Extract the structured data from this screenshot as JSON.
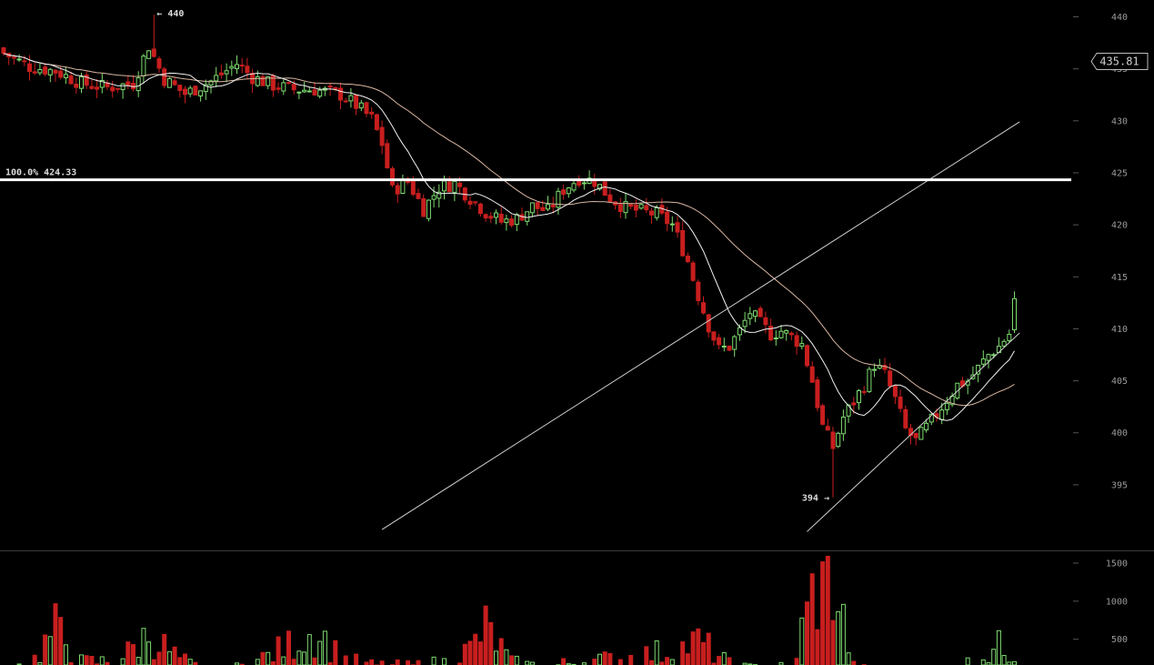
{
  "chart_data": {
    "type": "candlestick",
    "colors": {
      "background": "#000000",
      "up": "#7ddc6e",
      "down": "#c81e1e",
      "fast_ma": "#f2f2f2",
      "slow_ma": "#d9b6a0",
      "trendline": "#cfcfcf",
      "level_line": "#ffffff",
      "tick_text": "#9a9a9a"
    },
    "price_axis": {
      "ticks": [
        395,
        400,
        405,
        410,
        415,
        420,
        425,
        430,
        435,
        440
      ],
      "range": [
        391.0,
        441.0
      ],
      "last_price_label": "435.81"
    },
    "volume_axis": {
      "ticks": [
        500,
        1000,
        1500
      ],
      "range": [
        0,
        1620
      ]
    },
    "level_line": {
      "value": 424.33,
      "label": "100.0% 424.33"
    },
    "annotations": [
      {
        "text": "← 440",
        "candle": 29,
        "price": 440.2
      },
      {
        "text": "394 →",
        "candle": 160,
        "price": 393.8
      }
    ],
    "trendlines": [
      {
        "from": {
          "candle": 73,
          "price": 390.7
        },
        "to": {
          "candle": 196,
          "price": 429.9
        }
      },
      {
        "from": {
          "candle": 155,
          "price": 390.5
        },
        "to": {
          "candle": 196,
          "price": 409.6
        }
      }
    ],
    "ohlc_keyframes": [
      [
        0,
        436.5
      ],
      [
        5,
        435.2
      ],
      [
        10,
        434.8
      ],
      [
        15,
        433.6
      ],
      [
        20,
        433.2
      ],
      [
        25,
        433.6
      ],
      [
        28,
        437.2
      ],
      [
        31,
        434.0
      ],
      [
        35,
        432.6
      ],
      [
        40,
        433.8
      ],
      [
        45,
        435.5
      ],
      [
        48,
        434.2
      ],
      [
        52,
        433.4
      ],
      [
        56,
        433.0
      ],
      [
        60,
        433.0
      ],
      [
        65,
        432.5
      ],
      [
        68,
        431.5
      ],
      [
        71,
        430.2
      ],
      [
        73,
        427.8
      ],
      [
        75,
        423.3
      ],
      [
        78,
        424.2
      ],
      [
        81,
        421.5
      ],
      [
        84,
        423.6
      ],
      [
        87,
        424.0
      ],
      [
        90,
        422.6
      ],
      [
        93,
        421.2
      ],
      [
        96,
        420.3
      ],
      [
        99,
        420.6
      ],
      [
        102,
        421.8
      ],
      [
        105,
        421.3
      ],
      [
        108,
        423.4
      ],
      [
        111,
        424.5
      ],
      [
        114,
        424.2
      ],
      [
        117,
        422.6
      ],
      [
        120,
        421.6
      ],
      [
        123,
        421.3
      ],
      [
        126,
        421.0
      ],
      [
        129,
        420.0
      ],
      [
        132,
        416.5
      ],
      [
        134,
        413.2
      ],
      [
        136,
        410.3
      ],
      [
        138,
        408.0
      ],
      [
        140,
        408.3
      ],
      [
        142,
        409.8
      ],
      [
        144,
        411.6
      ],
      [
        146,
        410.5
      ],
      [
        148,
        409.5
      ],
      [
        150,
        409.8
      ],
      [
        152,
        409.2
      ],
      [
        154,
        408.5
      ],
      [
        156,
        405.0
      ],
      [
        158,
        400.6
      ],
      [
        160,
        398.6
      ],
      [
        162,
        401.5
      ],
      [
        164,
        403.0
      ],
      [
        166,
        404.6
      ],
      [
        168,
        406.6
      ],
      [
        170,
        405.6
      ],
      [
        172,
        403.2
      ],
      [
        174,
        400.3
      ],
      [
        176,
        399.2
      ],
      [
        178,
        400.5
      ],
      [
        180,
        401.8
      ],
      [
        182,
        403.2
      ],
      [
        184,
        404.6
      ],
      [
        186,
        405.0
      ],
      [
        188,
        406.2
      ],
      [
        190,
        407.5
      ],
      [
        192,
        408.3
      ],
      [
        194,
        409.5
      ],
      [
        195,
        412.4
      ]
    ],
    "volume_keyframes": [
      [
        0,
        90
      ],
      [
        6,
        300
      ],
      [
        10,
        800
      ],
      [
        15,
        250
      ],
      [
        22,
        260
      ],
      [
        28,
        700
      ],
      [
        34,
        300
      ],
      [
        40,
        40
      ],
      [
        48,
        230
      ],
      [
        55,
        520
      ],
      [
        58,
        680
      ],
      [
        61,
        720
      ],
      [
        65,
        320
      ],
      [
        70,
        200
      ],
      [
        78,
        180
      ],
      [
        85,
        240
      ],
      [
        90,
        460
      ],
      [
        93,
        820
      ],
      [
        98,
        240
      ],
      [
        105,
        160
      ],
      [
        110,
        250
      ],
      [
        115,
        280
      ],
      [
        120,
        310
      ],
      [
        126,
        400
      ],
      [
        130,
        450
      ],
      [
        134,
        590
      ],
      [
        137,
        420
      ],
      [
        140,
        210
      ],
      [
        144,
        150
      ],
      [
        148,
        200
      ],
      [
        152,
        140
      ],
      [
        156,
        1350
      ],
      [
        158,
        1450
      ],
      [
        160,
        1580
      ],
      [
        162,
        900
      ],
      [
        164,
        180
      ],
      [
        168,
        100
      ],
      [
        172,
        90
      ],
      [
        176,
        60
      ],
      [
        180,
        60
      ],
      [
        184,
        160
      ],
      [
        188,
        300
      ],
      [
        192,
        500
      ],
      [
        195,
        420
      ]
    ]
  }
}
